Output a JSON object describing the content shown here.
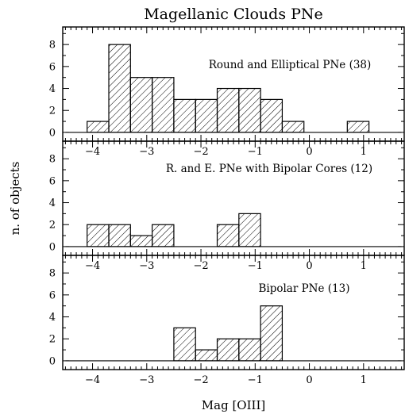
{
  "chart_data": {
    "type": "bar",
    "title": "Magellanic Clouds PNe",
    "xlabel": "Mag [OIII]",
    "ylabel": "n. of objects",
    "xlim": [
      -4.55,
      1.75
    ],
    "bin_width": 0.4,
    "x_ticks": [
      "−4",
      "−3",
      "−2",
      "−1",
      "0",
      "1"
    ],
    "y_ticks": [
      "0",
      "2",
      "4",
      "6",
      "8"
    ],
    "panels": [
      {
        "label": "Round and Elliptical PNe (38)",
        "ylim": [
          -0.8,
          9.6
        ],
        "bin_left_edges": [
          -4.1,
          -3.7,
          -3.3,
          -2.9,
          -2.5,
          -2.1,
          -1.7,
          -1.3,
          -0.9,
          -0.5,
          0.7
        ],
        "values": [
          1,
          8,
          5,
          5,
          3,
          3,
          4,
          4,
          3,
          1,
          1
        ]
      },
      {
        "label": "R. and E. PNe with Bipolar Cores (12)",
        "ylim": [
          -0.8,
          9.6
        ],
        "bin_left_edges": [
          -4.1,
          -3.7,
          -3.3,
          -2.9,
          -1.7,
          -1.3
        ],
        "values": [
          2,
          2,
          1,
          2,
          2,
          3
        ]
      },
      {
        "label": "Bipolar   PNe (13)",
        "ylim": [
          -0.8,
          9.6
        ],
        "bin_left_edges": [
          -2.5,
          -2.1,
          -1.7,
          -1.3,
          -0.9
        ],
        "values": [
          3,
          1,
          2,
          2,
          5
        ]
      }
    ]
  }
}
